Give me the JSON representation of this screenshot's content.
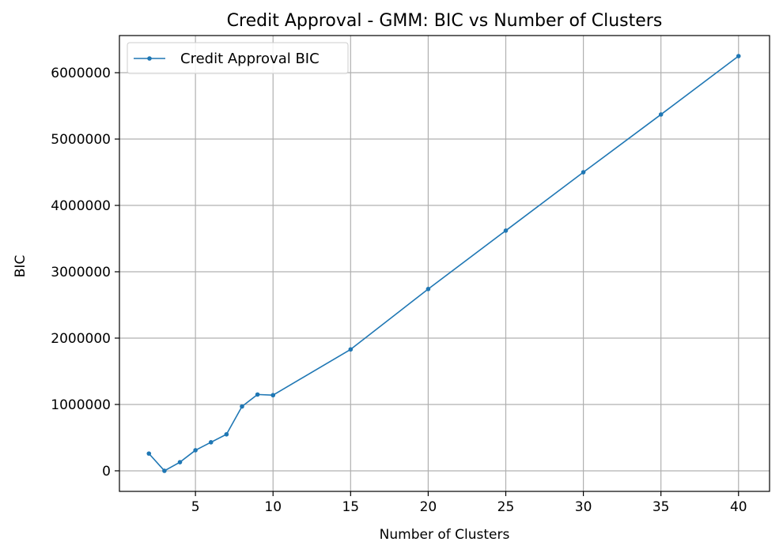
{
  "chart_data": {
    "type": "line",
    "title": "Credit Approval - GMM: BIC vs Number of Clusters",
    "xlabel": "Number of Clusters",
    "ylabel": "BIC",
    "xlim": [
      0.1,
      42
    ],
    "ylim": [
      -310000,
      6560000
    ],
    "x_ticks": [
      5,
      10,
      15,
      20,
      25,
      30,
      35,
      40
    ],
    "x_tick_labels": [
      "5",
      "10",
      "15",
      "20",
      "25",
      "30",
      "35",
      "40"
    ],
    "y_ticks": [
      0,
      1000000,
      2000000,
      3000000,
      4000000,
      5000000,
      6000000
    ],
    "y_tick_labels": [
      "0",
      "1000000",
      "2000000",
      "3000000",
      "4000000",
      "5000000",
      "6000000"
    ],
    "grid": true,
    "legend_position": "top-left",
    "series": [
      {
        "name": "Credit Approval BIC",
        "color": "#1f77b4",
        "marker": "circle",
        "x": [
          2,
          3,
          4,
          5,
          6,
          7,
          8,
          9,
          10,
          15,
          20,
          25,
          30,
          35,
          40
        ],
        "y": [
          260000,
          0,
          130000,
          310000,
          430000,
          550000,
          970000,
          1150000,
          1140000,
          1830000,
          2740000,
          3620000,
          4500000,
          5370000,
          6250000
        ]
      }
    ]
  }
}
